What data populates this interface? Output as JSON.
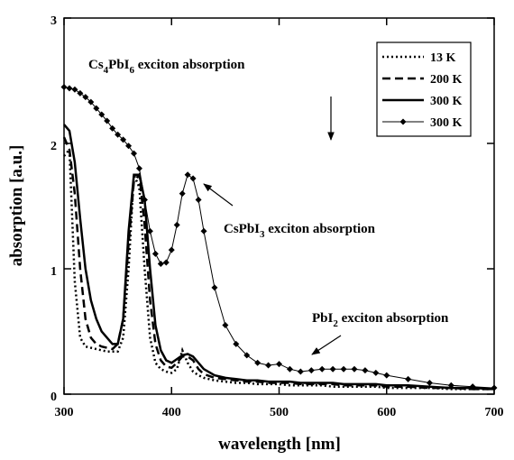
{
  "chart_data": {
    "type": "line",
    "xlabel": "wavelength [nm]",
    "ylabel": "absorption [a.u.]",
    "x": [
      300,
      305,
      310,
      315,
      320,
      325,
      330,
      335,
      340,
      345,
      350,
      355,
      360,
      365,
      370,
      375,
      380,
      385,
      390,
      395,
      400,
      405,
      410,
      415,
      420,
      425,
      430,
      440,
      450,
      460,
      470,
      480,
      490,
      500,
      510,
      520,
      530,
      540,
      550,
      560,
      570,
      580,
      590,
      600,
      620,
      640,
      660,
      680,
      700
    ],
    "series": [
      {
        "name": "13 K",
        "color": "#000000",
        "linestyle": "dotted",
        "linewidth": 2.5,
        "values": [
          1.9,
          1.95,
          0.9,
          0.45,
          0.38,
          0.37,
          0.36,
          0.35,
          0.34,
          0.34,
          0.34,
          0.45,
          1.0,
          1.75,
          1.65,
          1.0,
          0.45,
          0.25,
          0.2,
          0.18,
          0.17,
          0.2,
          0.35,
          0.25,
          0.18,
          0.15,
          0.13,
          0.11,
          0.1,
          0.09,
          0.09,
          0.08,
          0.08,
          0.08,
          0.07,
          0.07,
          0.07,
          0.07,
          0.06,
          0.06,
          0.06,
          0.06,
          0.06,
          0.05,
          0.05,
          0.05,
          0.04,
          0.04,
          0.04
        ]
      },
      {
        "name": "200 K",
        "color": "#000000",
        "linestyle": "dashed",
        "linewidth": 2.5,
        "values": [
          2.05,
          1.95,
          1.6,
          1.0,
          0.6,
          0.45,
          0.4,
          0.38,
          0.37,
          0.36,
          0.4,
          0.6,
          1.2,
          1.7,
          1.75,
          1.35,
          0.75,
          0.4,
          0.27,
          0.22,
          0.21,
          0.25,
          0.3,
          0.3,
          0.27,
          0.2,
          0.16,
          0.13,
          0.12,
          0.11,
          0.1,
          0.1,
          0.09,
          0.09,
          0.09,
          0.08,
          0.08,
          0.08,
          0.08,
          0.07,
          0.07,
          0.07,
          0.07,
          0.06,
          0.06,
          0.05,
          0.05,
          0.04,
          0.04
        ]
      },
      {
        "name": "300 K",
        "color": "#000000",
        "linestyle": "solid",
        "linewidth": 2.5,
        "values": [
          2.15,
          2.1,
          1.85,
          1.4,
          1.0,
          0.75,
          0.6,
          0.5,
          0.45,
          0.4,
          0.4,
          0.6,
          1.3,
          1.75,
          1.75,
          1.55,
          1.0,
          0.55,
          0.35,
          0.27,
          0.25,
          0.28,
          0.31,
          0.32,
          0.3,
          0.25,
          0.2,
          0.15,
          0.13,
          0.12,
          0.11,
          0.11,
          0.1,
          0.1,
          0.1,
          0.09,
          0.09,
          0.09,
          0.09,
          0.08,
          0.08,
          0.08,
          0.08,
          0.07,
          0.07,
          0.06,
          0.05,
          0.05,
          0.04
        ]
      },
      {
        "name": "300 K",
        "color": "#000000",
        "linestyle": "solid",
        "linewidth": 1,
        "marker": "diamond",
        "values": [
          2.45,
          2.44,
          2.43,
          2.4,
          2.37,
          2.33,
          2.28,
          2.23,
          2.18,
          2.12,
          2.07,
          2.03,
          1.98,
          1.92,
          1.8,
          1.55,
          1.3,
          1.12,
          1.04,
          1.05,
          1.15,
          1.35,
          1.6,
          1.75,
          1.72,
          1.55,
          1.3,
          0.85,
          0.55,
          0.4,
          0.31,
          0.25,
          0.23,
          0.24,
          0.2,
          0.18,
          0.19,
          0.2,
          0.2,
          0.2,
          0.2,
          0.19,
          0.17,
          0.15,
          0.12,
          0.09,
          0.07,
          0.06,
          0.05
        ]
      }
    ],
    "xlim": [
      300,
      700
    ],
    "xticks": [
      300,
      400,
      500,
      600,
      700
    ],
    "ylim": [
      0,
      3
    ],
    "yticks": [
      0,
      1,
      2,
      3
    ],
    "legend": "upper right",
    "annotations": [
      {
        "parts": [
          "Cs",
          "4",
          "PbI",
          "6",
          " exciton absorption"
        ]
      },
      {
        "parts": [
          "CsPbI",
          "3",
          " exciton absorption"
        ]
      },
      {
        "parts": [
          "PbI",
          "2",
          "  exciton absorption"
        ]
      }
    ]
  }
}
